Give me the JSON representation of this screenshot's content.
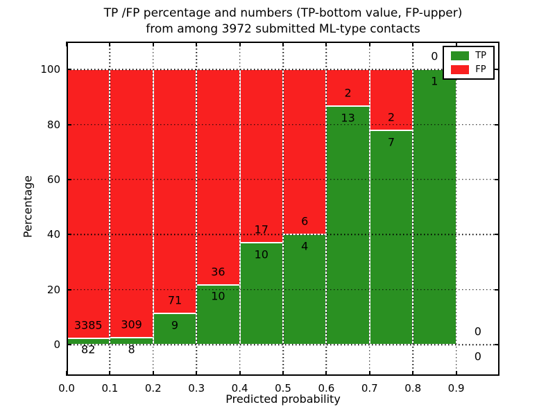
{
  "title": {
    "line1": "TP /FP percentage and numbers (TP-bottom value, FP-upper)",
    "line2": "from among 3972 submitted ML-type contacts"
  },
  "axes": {
    "xlabel": "Predicted probability",
    "ylabel": "Percentage",
    "x_tick_labels": [
      "0.0",
      "0.1",
      "0.2",
      "0.3",
      "0.4",
      "0.5",
      "0.6",
      "0.7",
      "0.8",
      "0.9"
    ],
    "y_tick_labels": [
      "0",
      "20",
      "40",
      "60",
      "80",
      "100"
    ]
  },
  "legend": {
    "items": [
      {
        "label": "TP",
        "color": "#2a9022"
      },
      {
        "label": "FP",
        "color": "#f92020"
      }
    ]
  },
  "chart_data": {
    "type": "bar",
    "stacked": true,
    "normalized_to_100_percent": true,
    "title": "TP /FP percentage and numbers (TP-bottom value, FP-upper) from among 3972 submitted ML-type contacts",
    "xlabel": "Predicted probability",
    "ylabel": "Percentage",
    "total_contacts": 3972,
    "bin_edges": [
      0.0,
      0.1,
      0.2,
      0.3,
      0.4,
      0.5,
      0.6,
      0.7,
      0.8,
      0.9,
      1.0
    ],
    "categories": [
      "0.0-0.1",
      "0.1-0.2",
      "0.2-0.3",
      "0.3-0.4",
      "0.4-0.5",
      "0.5-0.6",
      "0.6-0.7",
      "0.7-0.8",
      "0.8-0.9",
      "0.9-1.0"
    ],
    "series": [
      {
        "name": "TP",
        "color": "#2a9022",
        "counts": [
          82,
          8,
          9,
          10,
          10,
          4,
          13,
          7,
          1,
          0
        ],
        "percent": [
          2.37,
          2.52,
          11.25,
          21.74,
          37.04,
          40.0,
          86.67,
          77.78,
          100.0,
          0.0
        ]
      },
      {
        "name": "FP",
        "color": "#f92020",
        "counts": [
          3385,
          309,
          71,
          36,
          17,
          6,
          2,
          2,
          0,
          0
        ],
        "percent": [
          97.63,
          97.48,
          88.75,
          78.26,
          62.96,
          60.0,
          13.33,
          22.22,
          0.0,
          0.0
        ]
      }
    ],
    "xticks": [
      0.0,
      0.1,
      0.2,
      0.3,
      0.4,
      0.5,
      0.6,
      0.7,
      0.8,
      0.9
    ],
    "yticks": [
      0,
      20,
      40,
      60,
      80,
      100
    ],
    "xlim": [
      0.0,
      1.0
    ],
    "ylim": [
      -11.3,
      110.1
    ],
    "grid": "dotted",
    "legend_position": "upper right",
    "label_note": "TP count below segment boundary, FP count above segment boundary"
  }
}
